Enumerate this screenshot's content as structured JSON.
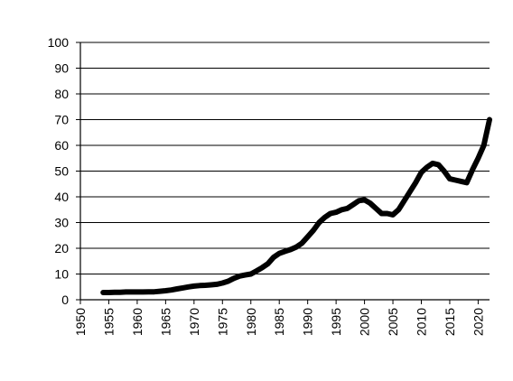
{
  "chart_data": {
    "type": "line",
    "title": "",
    "xlabel": "",
    "ylabel": "",
    "xlim": [
      1950,
      2022
    ],
    "ylim": [
      0,
      100
    ],
    "xticks": [
      1950,
      1955,
      1960,
      1965,
      1970,
      1975,
      1980,
      1985,
      1990,
      1995,
      2000,
      2005,
      2010,
      2015,
      2020
    ],
    "xtick_labels": [
      "1950",
      "1955",
      "1960",
      "1965",
      "1970",
      "1975",
      "1980",
      "1985",
      "1990",
      "1995",
      "2000",
      "2005",
      "2010",
      "2015",
      "2020"
    ],
    "yticks": [
      0,
      10,
      20,
      30,
      40,
      50,
      60,
      70,
      80,
      90,
      100
    ],
    "ytick_labels": [
      "0",
      "10",
      "20",
      "30",
      "40",
      "50",
      "60",
      "70",
      "80",
      "90",
      "100"
    ],
    "grid": "horizontal",
    "legend": "none",
    "line_color": "#000000",
    "series": [
      {
        "x": [
          1954,
          1955,
          1956,
          1957,
          1958,
          1959,
          1960,
          1961,
          1962,
          1963,
          1964,
          1965,
          1966,
          1967,
          1968,
          1969,
          1970,
          1971,
          1972,
          1973,
          1974,
          1975,
          1976,
          1977,
          1978,
          1979,
          1980,
          1981,
          1982,
          1983,
          1984,
          1985,
          1986,
          1987,
          1988,
          1989,
          1990,
          1991,
          1992,
          1993,
          1994,
          1995,
          1996,
          1997,
          1998,
          1999,
          2000,
          2001,
          2002,
          2003,
          2004,
          2005,
          2006,
          2007,
          2008,
          2009,
          2010,
          2011,
          2012,
          2013,
          2014,
          2015,
          2016,
          2017,
          2018,
          2019,
          2020,
          2021,
          2022
        ],
        "values": [
          2.8,
          2.8,
          2.9,
          2.9,
          3.0,
          3.0,
          3.0,
          3.0,
          3.1,
          3.1,
          3.3,
          3.5,
          3.8,
          4.2,
          4.6,
          5.0,
          5.3,
          5.5,
          5.6,
          5.8,
          6.0,
          6.5,
          7.2,
          8.3,
          9.2,
          9.6,
          10.0,
          11.2,
          12.5,
          14.0,
          16.5,
          18.0,
          18.8,
          19.5,
          20.5,
          22.0,
          24.5,
          27.0,
          30.0,
          32.0,
          33.5,
          34.0,
          35.0,
          35.5,
          37.0,
          38.5,
          38.8,
          37.5,
          35.5,
          33.5,
          33.5,
          33.0,
          35.0,
          38.5,
          42.0,
          45.5,
          49.5,
          51.5,
          53.0,
          52.5,
          50.0,
          47.0,
          46.5,
          46.0,
          45.5,
          50.5,
          55.0,
          60.0,
          70.0
        ]
      }
    ]
  }
}
